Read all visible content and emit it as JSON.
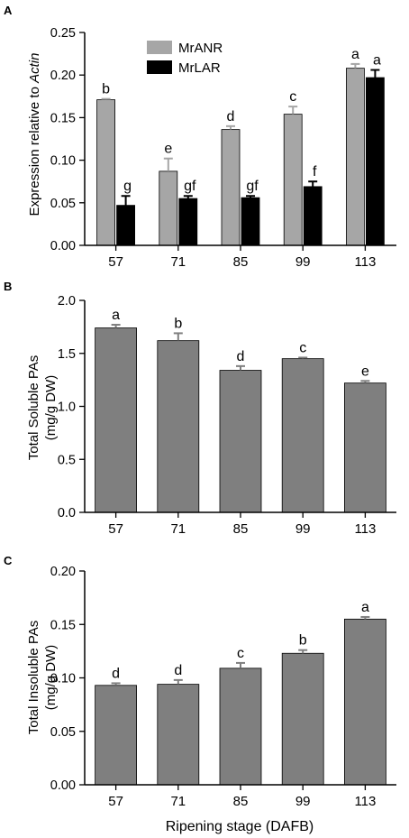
{
  "chart_data": [
    {
      "panel_label": "A",
      "type": "bar",
      "categories": [
        "57",
        "71",
        "85",
        "99",
        "113"
      ],
      "ylabel_prefix": "Expression relative to ",
      "ylabel_italic": "Actin",
      "xlabel": "",
      "ylim": [
        0,
        0.25
      ],
      "yticks": [
        "0.00",
        "0.05",
        "0.10",
        "0.15",
        "0.20",
        "0.25"
      ],
      "legend_position": "top-left",
      "series": [
        {
          "name": "MrANR",
          "color": "#a6a6a6",
          "values": [
            0.171,
            0.087,
            0.136,
            0.154,
            0.208
          ],
          "errors": [
            0.001,
            0.015,
            0.004,
            0.009,
            0.005
          ],
          "letters": [
            "b",
            "e",
            "d",
            "c",
            "a"
          ]
        },
        {
          "name": "MrLAR",
          "color": "#000000",
          "values": [
            0.047,
            0.055,
            0.056,
            0.069,
            0.197
          ],
          "errors": [
            0.011,
            0.003,
            0.002,
            0.006,
            0.009
          ],
          "letters": [
            "g",
            "gf",
            "gf",
            "f",
            "a"
          ]
        }
      ]
    },
    {
      "panel_label": "B",
      "type": "bar",
      "categories": [
        "57",
        "71",
        "85",
        "99",
        "113"
      ],
      "ylabel_lines": [
        "Total Soluble PAs",
        "(mg/g DW)"
      ],
      "xlabel": "",
      "ylim": [
        0,
        2.0
      ],
      "yticks": [
        "0.0",
        "0.5",
        "1.0",
        "1.5",
        "2.0"
      ],
      "series": [
        {
          "color": "#7f7f7f",
          "values": [
            1.74,
            1.62,
            1.34,
            1.45,
            1.22
          ],
          "errors": [
            0.03,
            0.07,
            0.04,
            0.01,
            0.02
          ],
          "letters": [
            "a",
            "b",
            "d",
            "c",
            "e"
          ]
        }
      ]
    },
    {
      "panel_label": "C",
      "type": "bar",
      "categories": [
        "57",
        "71",
        "85",
        "99",
        "113"
      ],
      "ylabel_lines": [
        "Total Insoluble PAs",
        "(mg/g DW)"
      ],
      "xlabel": "Ripening stage (DAFB)",
      "ylim": [
        0,
        0.2
      ],
      "yticks": [
        "0.00",
        "0.05",
        "0.10",
        "0.15",
        "0.20"
      ],
      "series": [
        {
          "color": "#7f7f7f",
          "values": [
            0.093,
            0.094,
            0.109,
            0.123,
            0.155
          ],
          "errors": [
            0.002,
            0.004,
            0.005,
            0.003,
            0.002
          ],
          "letters": [
            "d",
            "d",
            "c",
            "b",
            "a"
          ]
        }
      ]
    }
  ]
}
